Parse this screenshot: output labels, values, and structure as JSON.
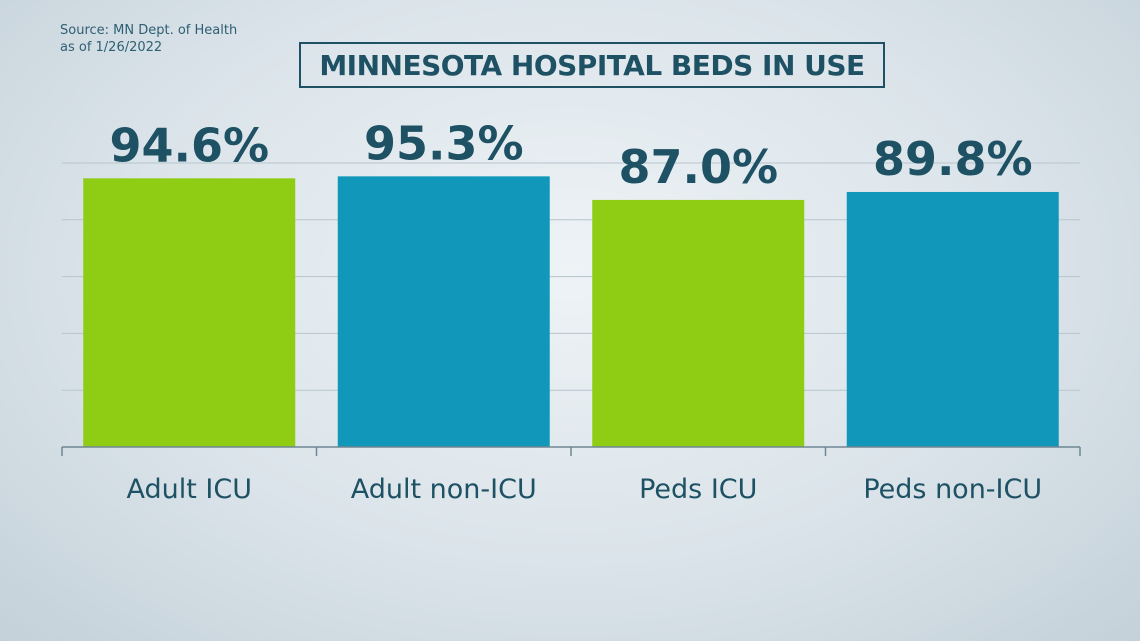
{
  "source": {
    "line1": "Source: MN Dept. of Health",
    "line2": "as of 1/26/2022"
  },
  "chart_data": {
    "type": "bar",
    "title": "MINNESOTA HOSPITAL BEDS IN USE",
    "categories": [
      "Adult ICU",
      "Adult non-ICU",
      "Peds ICU",
      "Peds non-ICU"
    ],
    "values": [
      94.6,
      95.3,
      87.0,
      89.8
    ],
    "value_labels": [
      "94.6%",
      "95.3%",
      "87.0%",
      "89.8%"
    ],
    "bar_colors": [
      "#8fcc14",
      "#1197b9",
      "#8fcc14",
      "#1197b9"
    ],
    "label_color": "#1d5163",
    "gridline_color": "#b7c5cd",
    "axis_color": "#6f8793",
    "grid": true,
    "ylim": [
      0,
      100
    ]
  }
}
